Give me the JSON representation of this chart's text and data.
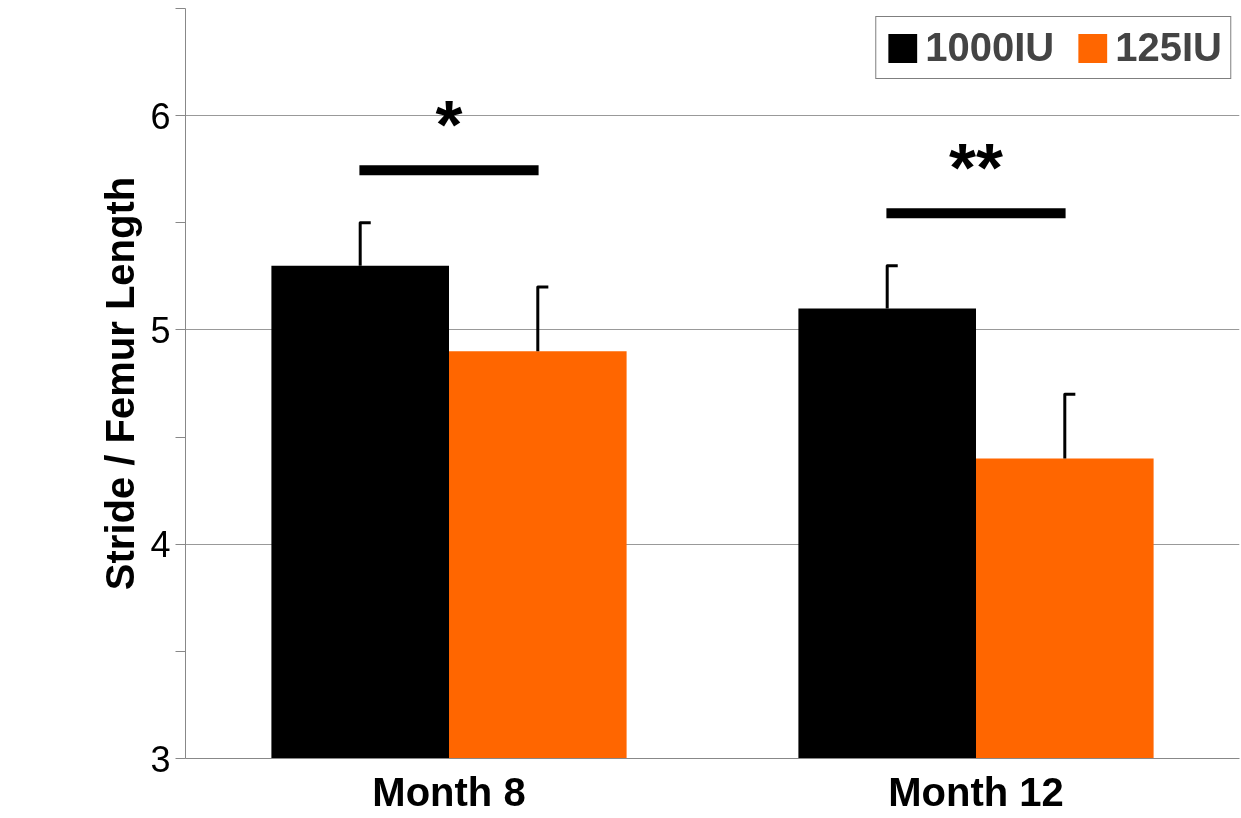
{
  "chart_data": {
    "type": "bar",
    "ylabel": "Stride / Femur Length",
    "categories": [
      "Month 8",
      "Month 12"
    ],
    "series": [
      {
        "name": "1000IU",
        "color": "#000000",
        "values": [
          5.3,
          5.1
        ],
        "errors": [
          [
            5.3,
            5.5
          ],
          [
            5.1,
            5.3
          ]
        ]
      },
      {
        "name": "125IU",
        "color": "#ff6600",
        "values": [
          4.9,
          4.4
        ],
        "errors": [
          [
            4.9,
            5.2
          ],
          [
            4.4,
            4.7
          ]
        ]
      }
    ],
    "ylim": [
      3,
      6.5
    ],
    "yticks": [
      3,
      {
        "value": 3.5,
        "label": null
      },
      4,
      {
        "value": 4.5,
        "label": null
      },
      5,
      {
        "value": 5.5,
        "label": null
      },
      6,
      {
        "value": 6.5,
        "label": null
      }
    ],
    "grid": "y",
    "legend": "top right",
    "annotations": [
      "*",
      "**"
    ]
  }
}
